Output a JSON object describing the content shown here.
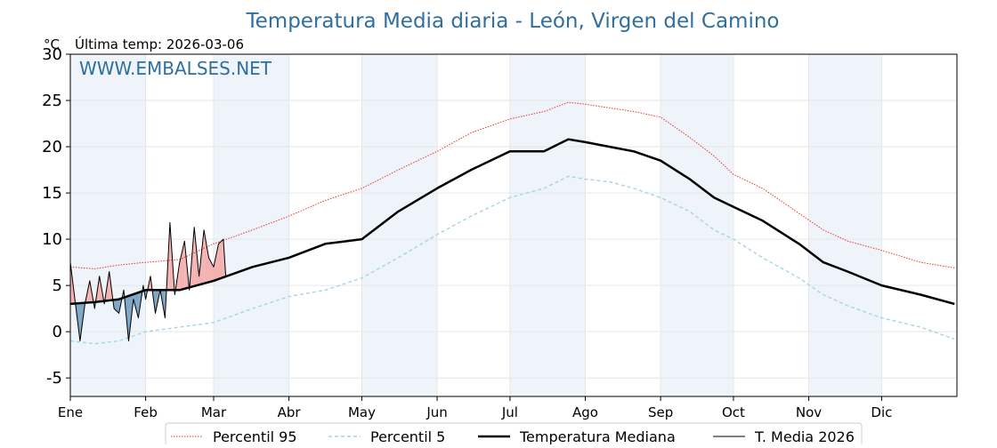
{
  "title": "Temperatura Media diaria - León, Virgen del Camino",
  "subtitle": "Última temp: 2026-03-06",
  "unit": "°C",
  "watermark": "WWW.EMBALSES.NET",
  "colors": {
    "title": "#2f6f9f",
    "p95": "#e8362b",
    "p5": "#a8d4e6",
    "median": "#000000",
    "current": "#000000",
    "above_fill": "#f4b3b3",
    "below_fill": "#7ea7c8",
    "band": "#eef4fa"
  },
  "chart_data": {
    "type": "line",
    "title": "Temperatura Media diaria - León, Virgen del Camino",
    "ylabel": "°C",
    "ylim": [
      -7,
      30
    ],
    "yticks": [
      -5,
      0,
      5,
      10,
      15,
      20,
      25,
      30
    ],
    "xlim": [
      0,
      365
    ],
    "grid": true,
    "legend_position": "bottom",
    "month_labels": [
      "Ene",
      "Feb",
      "Mar",
      "Abr",
      "May",
      "Jun",
      "Jul",
      "Ago",
      "Sep",
      "Oct",
      "Nov",
      "Dic"
    ],
    "month_starts": [
      0,
      31,
      59,
      90,
      120,
      151,
      181,
      212,
      243,
      273,
      304,
      334
    ],
    "series": [
      {
        "name": "Percentil 95",
        "style": "dotted-red",
        "x": [
          0,
          10,
          20,
          31,
          45,
          59,
          75,
          90,
          105,
          120,
          135,
          151,
          165,
          181,
          195,
          205,
          212,
          222,
          232,
          243,
          255,
          265,
          273,
          285,
          300,
          310,
          320,
          334,
          350,
          364
        ],
        "values": [
          7.0,
          6.8,
          7.2,
          7.5,
          7.8,
          9.5,
          11.0,
          12.5,
          14.2,
          15.5,
          17.5,
          19.5,
          21.5,
          23.0,
          23.8,
          24.8,
          24.6,
          24.2,
          23.8,
          23.2,
          21.0,
          19.0,
          17.0,
          15.5,
          12.8,
          11.0,
          9.8,
          8.8,
          7.5,
          6.9
        ]
      },
      {
        "name": "Percentil 5",
        "style": "dashed-lightblue",
        "x": [
          0,
          10,
          20,
          31,
          45,
          59,
          75,
          90,
          105,
          120,
          135,
          151,
          165,
          181,
          195,
          205,
          212,
          222,
          232,
          243,
          255,
          265,
          273,
          285,
          300,
          310,
          320,
          334,
          350,
          364
        ],
        "values": [
          -1.0,
          -1.3,
          -1.0,
          0.0,
          0.5,
          1.0,
          2.5,
          3.8,
          4.5,
          5.8,
          8.0,
          10.5,
          12.5,
          14.5,
          15.5,
          16.8,
          16.5,
          16.2,
          15.5,
          14.5,
          13.0,
          11.0,
          10.0,
          8.0,
          5.8,
          4.0,
          2.8,
          1.5,
          0.5,
          -0.8
        ]
      },
      {
        "name": "Temperatura Mediana",
        "style": "solid-bold-black",
        "x": [
          0,
          10,
          20,
          31,
          45,
          59,
          75,
          90,
          105,
          120,
          135,
          151,
          165,
          181,
          195,
          205,
          212,
          222,
          232,
          243,
          255,
          265,
          273,
          285,
          300,
          310,
          320,
          334,
          350,
          364
        ],
        "values": [
          3.0,
          3.2,
          3.5,
          4.5,
          4.5,
          5.5,
          7.0,
          8.0,
          9.5,
          10.0,
          13.0,
          15.5,
          17.5,
          19.5,
          19.5,
          20.8,
          20.5,
          20.0,
          19.5,
          18.5,
          16.5,
          14.5,
          13.5,
          12.0,
          9.5,
          7.5,
          6.5,
          5.0,
          4.0,
          3.0
        ]
      },
      {
        "name": "T. Media 2026",
        "style": "solid-thin-black",
        "x": [
          0,
          2,
          4,
          6,
          8,
          10,
          12,
          14,
          16,
          18,
          20,
          22,
          24,
          26,
          28,
          30,
          31,
          33,
          35,
          37,
          39,
          41,
          43,
          45,
          47,
          49,
          51,
          53,
          55,
          57,
          59,
          61,
          63,
          64
        ],
        "values": [
          7.5,
          3.2,
          -1.0,
          3.0,
          5.5,
          2.5,
          6.0,
          3.0,
          6.5,
          2.5,
          2.0,
          4.5,
          -1.0,
          3.5,
          1.5,
          5.0,
          3.5,
          6.0,
          2.0,
          4.5,
          1.5,
          11.8,
          4.0,
          7.5,
          9.8,
          4.5,
          11.3,
          6.0,
          11.0,
          8.0,
          7.0,
          9.5,
          10.0,
          6.0
        ]
      }
    ]
  },
  "legend": [
    {
      "label": "Percentil 95",
      "style": "dotted-red"
    },
    {
      "label": "Percentil 5",
      "style": "dashed-lightblue"
    },
    {
      "label": "Temperatura Mediana",
      "style": "solid-bold-black"
    },
    {
      "label": "T. Media 2026",
      "style": "solid-thin-black"
    }
  ]
}
